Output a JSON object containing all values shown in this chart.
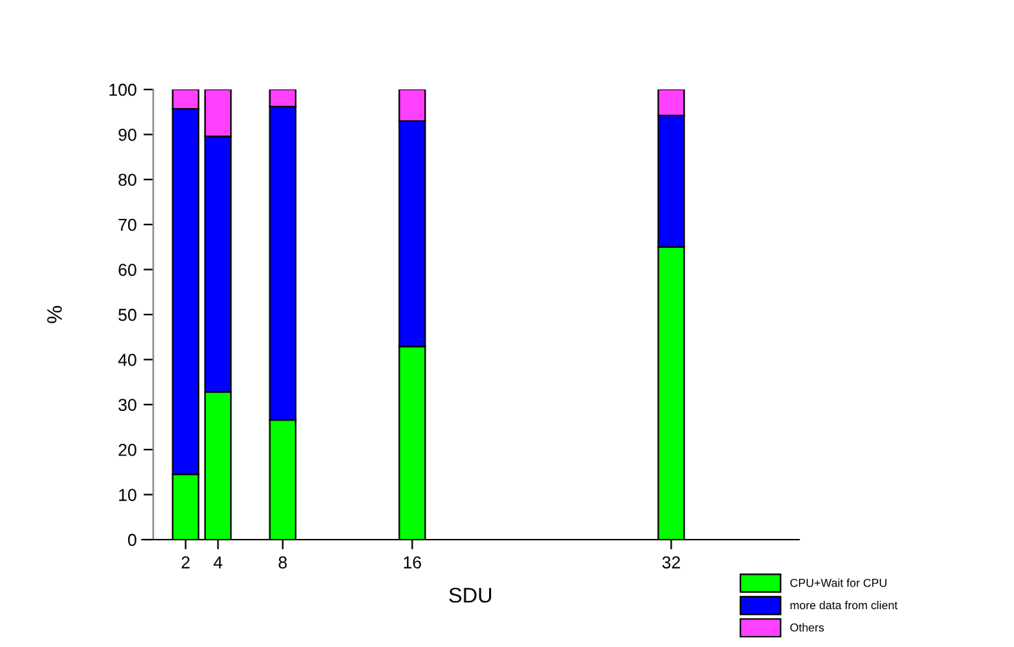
{
  "chart_data": {
    "type": "bar",
    "stacked": true,
    "xlabel": "SDU",
    "ylabel": "%",
    "x": [
      2,
      4,
      8,
      16,
      32
    ],
    "series": [
      {
        "name": "CPU+Wait for CPU",
        "color": "#00ff00",
        "values": [
          14.5,
          32.8,
          26.6,
          42.9,
          65
        ]
      },
      {
        "name": "more data from client",
        "color": "#0000ff",
        "values": [
          81.2,
          56.8,
          69.6,
          50.1,
          29.2
        ]
      },
      {
        "name": "Others",
        "color": "#ff40ff",
        "values": [
          4.3,
          10.4,
          3.8,
          7,
          5.8
        ]
      }
    ],
    "xlim": [
      -0.7,
      39.9
    ],
    "xticks": [
      2,
      4,
      8,
      16,
      32
    ],
    "ylim": [
      0,
      100
    ],
    "yticks": [
      0,
      10,
      20,
      30,
      40,
      50,
      60,
      70,
      80,
      90,
      100
    ],
    "grid": false,
    "legend": "bottom right"
  }
}
